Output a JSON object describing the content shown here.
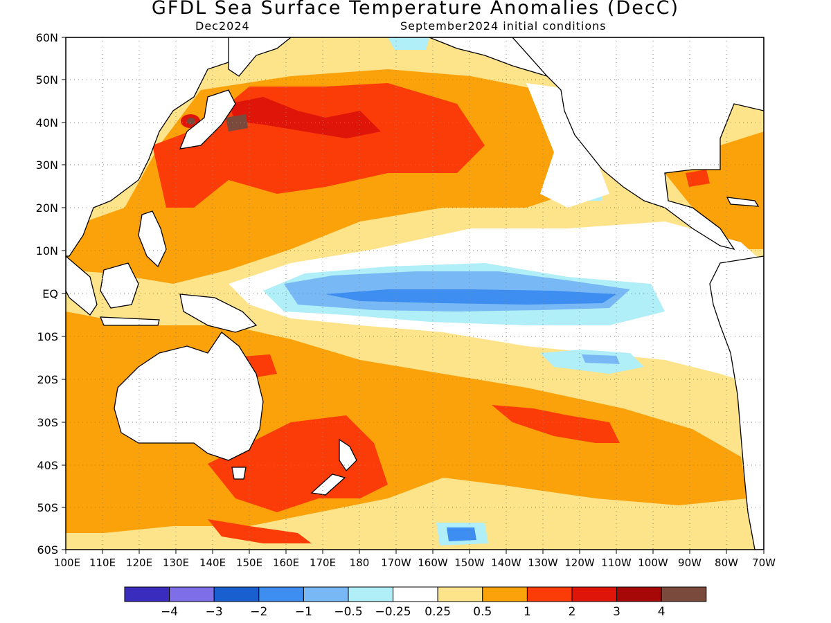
{
  "title": "GFDL Sea Surface Temperature Anomalies (DecC)",
  "valid_month": "Dec2024",
  "init_conditions": "September2024 initial conditions",
  "lat_labels": [
    "60N",
    "50N",
    "40N",
    "30N",
    "20N",
    "10N",
    "EQ",
    "10S",
    "20S",
    "30S",
    "40S",
    "50S",
    "60S"
  ],
  "lon_labels": [
    "100E",
    "110E",
    "120E",
    "130E",
    "140E",
    "150E",
    "160E",
    "170E",
    "180",
    "170W",
    "160W",
    "150W",
    "140W",
    "130W",
    "120W",
    "110W",
    "100W",
    "90W",
    "80W",
    "70W"
  ],
  "colorbar": {
    "colors": [
      "#3a2dbe",
      "#7e6ee8",
      "#1a5fd0",
      "#3d8ef0",
      "#78b8f5",
      "#b0eef8",
      "#ffffff",
      "#fde38a",
      "#fba10a",
      "#fb3b08",
      "#de1508",
      "#a60808",
      "#7a4a3c"
    ],
    "labels": [
      "-4",
      "-3",
      "-2",
      "-1",
      "-0.5",
      "-0.25",
      "0.25",
      "0.5",
      "1",
      "2",
      "3",
      "4"
    ]
  }
}
